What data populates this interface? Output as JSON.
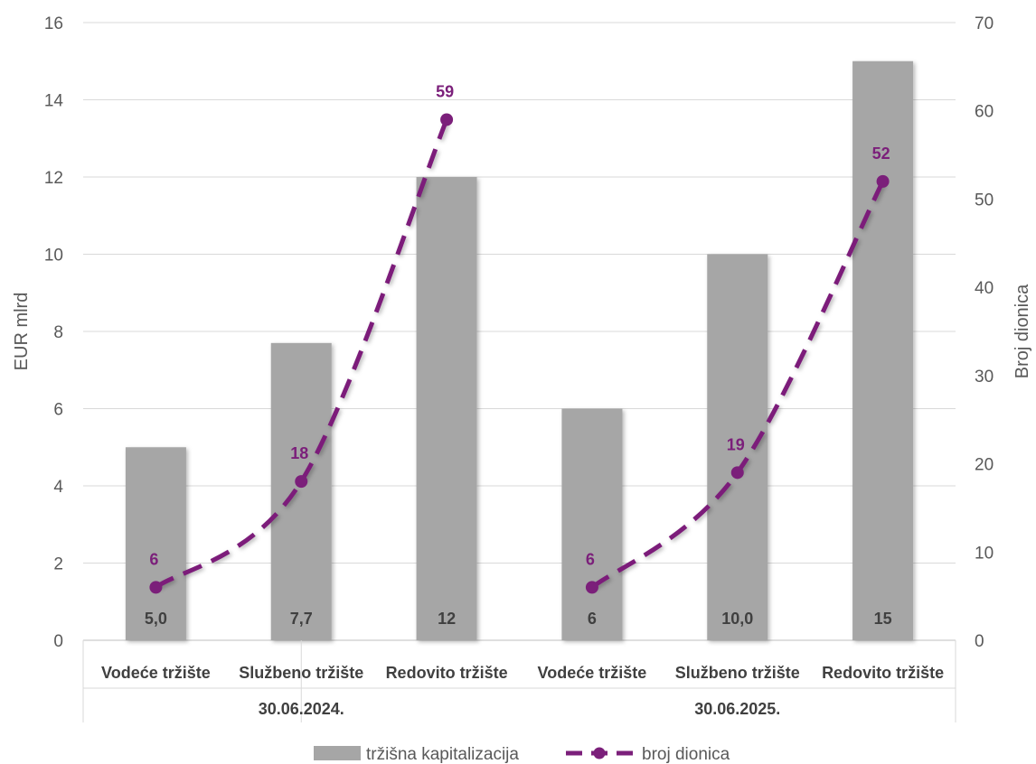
{
  "chart_data": {
    "type": "bar",
    "groups": [
      {
        "label": "30.06.2024.",
        "categories": [
          "Vodeće tržište",
          "Službeno tržište",
          "Redovito tržište"
        ]
      },
      {
        "label": "30.06.2025.",
        "categories": [
          "Vodeće tržište",
          "Službeno tržište",
          "Redovito tržište"
        ]
      }
    ],
    "series": [
      {
        "name": "tržišna kapitalizacija",
        "type": "bar",
        "axis": "left",
        "values": [
          5.0,
          7.7,
          12,
          6,
          10.0,
          15
        ],
        "labels": [
          "5,0",
          "7,7",
          "12",
          "6",
          "10,0",
          "15"
        ],
        "color": "#a6a6a6"
      },
      {
        "name": "broj dionica",
        "type": "line",
        "axis": "right",
        "style": "dashed",
        "values": [
          6,
          18,
          59,
          6,
          19,
          52
        ],
        "labels": [
          "6",
          "18",
          "59",
          "6",
          "19",
          "52"
        ],
        "color": "#7b1f7a"
      }
    ],
    "ylabel": "EUR mlrd",
    "ylim": [
      0,
      16
    ],
    "yticks": [
      0,
      2,
      4,
      6,
      8,
      10,
      12,
      14,
      16
    ],
    "y2label": "Broj dionica",
    "y2lim": [
      0,
      70
    ],
    "y2ticks": [
      0,
      10,
      20,
      30,
      40,
      50,
      60,
      70
    ],
    "grid": true,
    "legend": "bottom"
  }
}
